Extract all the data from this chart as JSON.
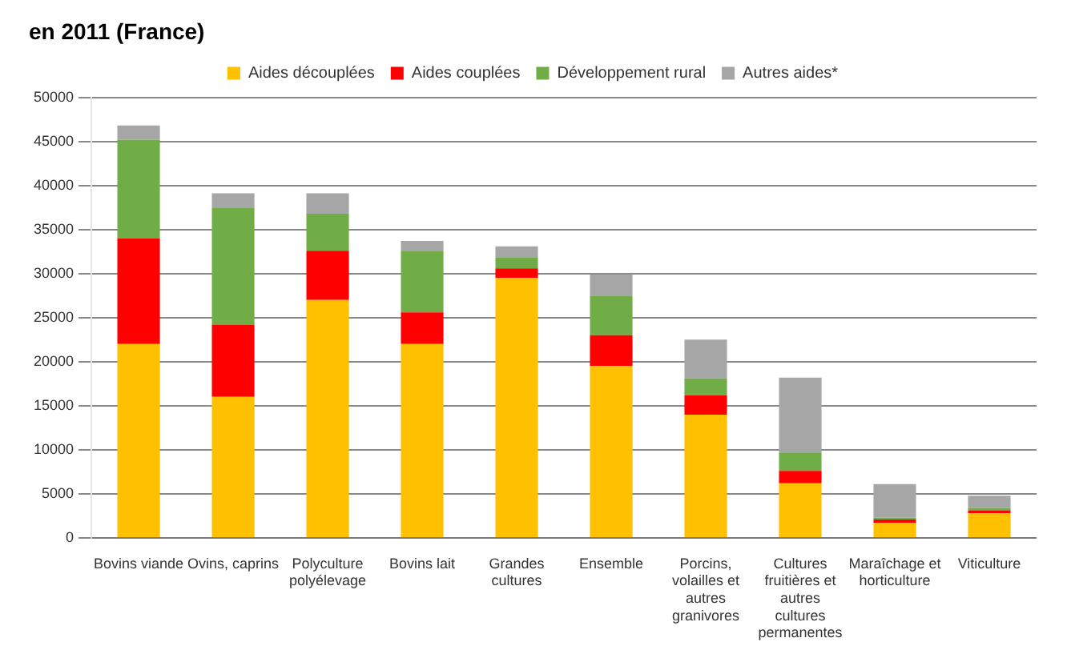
{
  "chart_data": {
    "type": "bar",
    "title": "en 2011 (France)",
    "stacked": true,
    "grid": "y",
    "legend": "top",
    "categories": [
      "Bovins viande",
      "Ovins, caprins",
      "Polyculture polyélevage",
      "Bovins lait",
      "Grandes cultures",
      "Ensemble",
      "Porcins, volailles et autres granivores",
      "Cultures fruitières et autres cultures permanentes",
      "Maraîchage et horticulture",
      "Viticulture"
    ],
    "ylim": [
      0,
      50000
    ],
    "yticks": [
      0,
      5000,
      10000,
      15000,
      20000,
      25000,
      30000,
      35000,
      40000,
      45000,
      50000
    ],
    "series": [
      {
        "name": "Aides découplées",
        "color": "#ffc000",
        "values": [
          22000,
          16000,
          27000,
          22000,
          29500,
          19500,
          14000,
          6200,
          1700,
          2800
        ]
      },
      {
        "name": "Aides couplées",
        "color": "#ff0000",
        "values": [
          12000,
          8200,
          5600,
          3600,
          1100,
          3500,
          2200,
          1400,
          400,
          300
        ]
      },
      {
        "name": "Développement rural",
        "color": "#70ad47",
        "values": [
          11200,
          13300,
          4200,
          7000,
          1200,
          4500,
          1900,
          2100,
          200,
          300
        ]
      },
      {
        "name": "Autres aides*",
        "color": "#a6a6a6",
        "values": [
          1600,
          1600,
          2300,
          1100,
          1300,
          2400,
          4400,
          8500,
          3800,
          1400
        ]
      }
    ]
  }
}
